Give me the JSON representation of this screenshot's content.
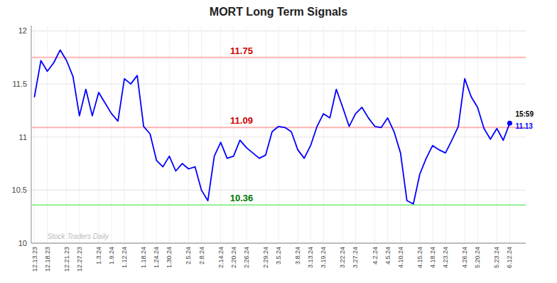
{
  "chart_data": {
    "type": "line",
    "title": "MORT Long Term Signals",
    "categories": [
      "12.13.23",
      null,
      "12.18.23",
      null,
      null,
      "12.21.23",
      null,
      "12.27.23",
      null,
      null,
      "1.3.24",
      null,
      "1.9.24",
      null,
      "1.12.24",
      null,
      null,
      "1.18.24",
      null,
      "1.24.24",
      null,
      "1.30.24",
      null,
      null,
      "2.5.24",
      null,
      "2.8.24",
      null,
      null,
      "2.14.24",
      null,
      "2.20.24",
      null,
      "2.26.24",
      null,
      null,
      "2.29.24",
      null,
      "3.5.24",
      null,
      null,
      "3.8.24",
      null,
      "3.13.24",
      null,
      "3.19.24",
      null,
      null,
      "3.22.24",
      null,
      "3.27.24",
      null,
      null,
      "4.2.24",
      null,
      "4.5.24",
      null,
      "4.10.24",
      null,
      null,
      "4.15.24",
      null,
      "4.18.24",
      null,
      "4.23.24",
      null,
      null,
      "4.26.24",
      null,
      "5.20.24",
      null,
      null,
      "5.23.24",
      null,
      "6.12.24"
    ],
    "values": [
      11.38,
      11.72,
      11.62,
      11.7,
      11.82,
      11.72,
      11.57,
      11.2,
      11.45,
      11.2,
      11.42,
      11.32,
      11.22,
      11.15,
      11.55,
      11.5,
      11.58,
      11.1,
      11.03,
      10.78,
      10.72,
      10.82,
      10.68,
      10.75,
      10.7,
      10.72,
      10.5,
      10.4,
      10.82,
      10.95,
      10.8,
      10.82,
      10.97,
      10.9,
      10.85,
      10.8,
      10.83,
      11.05,
      11.1,
      11.09,
      11.05,
      10.88,
      10.8,
      10.92,
      11.1,
      11.22,
      11.18,
      11.45,
      11.28,
      11.1,
      11.22,
      11.28,
      11.18,
      11.1,
      11.09,
      11.18,
      11.05,
      10.85,
      10.4,
      10.37,
      10.65,
      10.8,
      10.92,
      10.88,
      10.85,
      10.97,
      11.1,
      11.55,
      11.38,
      11.28,
      11.08,
      10.98,
      11.08,
      10.97,
      11.13
    ],
    "color": "blue",
    "ylim": [
      10.0,
      12.05
    ],
    "yticks": [
      10,
      10.5,
      11,
      11.5,
      12
    ],
    "grid": true,
    "reference_lines": [
      {
        "value": 11.75,
        "label": "11.75",
        "color": "#ffb3b3",
        "label_color": "#cc0000"
      },
      {
        "value": 11.09,
        "label": "11.09",
        "color": "#ffb3b3",
        "label_color": "#cc0000"
      },
      {
        "value": 10.36,
        "label": "10.36",
        "color": "#90ee90",
        "label_color": "#007700"
      }
    ],
    "last_label": "15:59",
    "last_value": 11.13,
    "watermark": "Stock Traders Daily"
  }
}
